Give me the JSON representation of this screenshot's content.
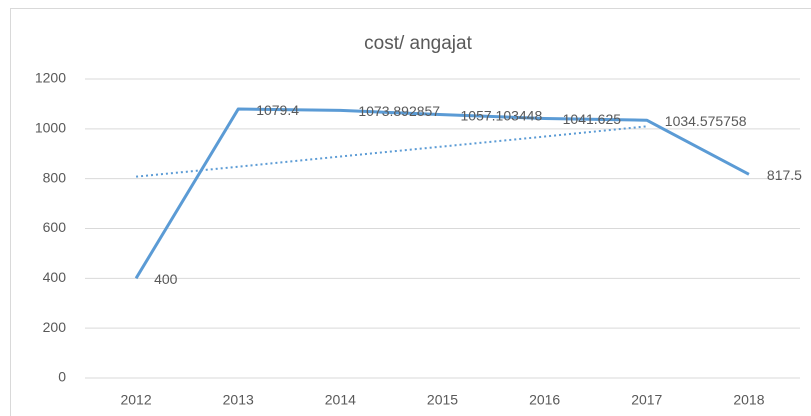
{
  "chart_data": {
    "type": "line",
    "title": "cost/ angajat",
    "categories": [
      "2012",
      "2013",
      "2014",
      "2015",
      "2016",
      "2017",
      "2018"
    ],
    "series": [
      {
        "color": "#5b9bd5",
        "values": [
          400,
          1079.4,
          1073.892857,
          1057.103448,
          1041.625,
          1034.575758,
          817.5
        ]
      }
    ],
    "trendline": {
      "color": "#5b9bd5",
      "values": [
        808,
        848,
        889,
        929,
        969,
        1010,
        null
      ]
    },
    "ylim": [
      0,
      1200
    ],
    "yticks": [
      0,
      200,
      400,
      600,
      800,
      1000,
      1200
    ],
    "grid": true
  }
}
